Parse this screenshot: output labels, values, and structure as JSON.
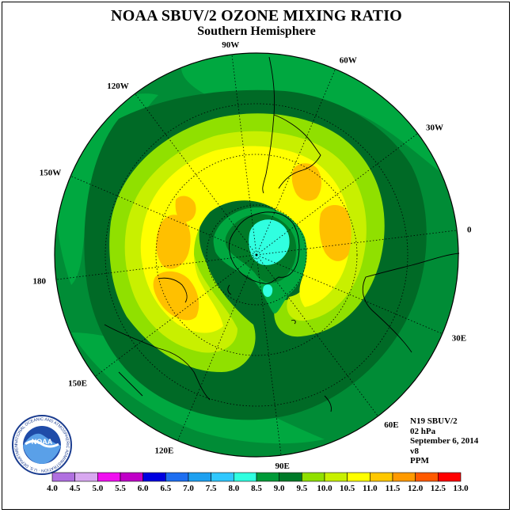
{
  "header": {
    "title": "NOAA SBUV/2 OZONE MIXING RATIO",
    "subtitle": "Southern Hemisphere"
  },
  "map": {
    "longitude_labels": [
      {
        "text": "90W",
        "angle": -97
      },
      {
        "text": "60W",
        "angle": -67
      },
      {
        "text": "30W",
        "angle": -37
      },
      {
        "text": "0",
        "angle": -7
      },
      {
        "text": "30E",
        "angle": 23
      },
      {
        "text": "60E",
        "angle": 53
      },
      {
        "text": "90E",
        "angle": 83
      },
      {
        "text": "120E",
        "angle": 113
      },
      {
        "text": "150E",
        "angle": 143
      },
      {
        "text": "180",
        "angle": 173
      },
      {
        "text": "150W",
        "angle": 203
      },
      {
        "text": "120W",
        "angle": 233
      }
    ]
  },
  "info": {
    "instrument": "N19 SBUV/2",
    "level": "02 hPa",
    "date": "September 6, 2014",
    "version": "v8",
    "units": "PPM"
  },
  "logo": {
    "text": "NOAA",
    "ring_text": "NATIONAL OCEANIC AND ATMOSPHERIC ADMINISTRATION · U.S. DEPARTMENT OF COMMERCE ·"
  },
  "colorbar": {
    "labels": [
      "4.0",
      "4.5",
      "5.0",
      "5.5",
      "6.0",
      "6.5",
      "7.0",
      "7.5",
      "8.0",
      "8.5",
      "9.0",
      "9.5",
      "10.0",
      "10.5",
      "11.0",
      "11.5",
      "12.0",
      "12.5",
      "13.0"
    ],
    "colors": [
      "#b070e0",
      "#d8a8f0",
      "#f010f0",
      "#c000c8",
      "#0000e0",
      "#1e6ef0",
      "#1ea0f0",
      "#30c8ff",
      "#30ffe0",
      "#009a38",
      "#007a28",
      "#90e000",
      "#c8f000",
      "#ffff00",
      "#ffc800",
      "#ff9a00",
      "#ff5a00",
      "#ff0000",
      "#8a5030"
    ]
  },
  "colors": {
    "background_green": "#008c36",
    "dark_green": "#006a26",
    "mid_green": "#00a840",
    "light_green": "#6cd200",
    "yellow_green": "#c8f000",
    "yellow": "#ffff00",
    "orange": "#ffc000",
    "cyan": "#30ffe0"
  }
}
